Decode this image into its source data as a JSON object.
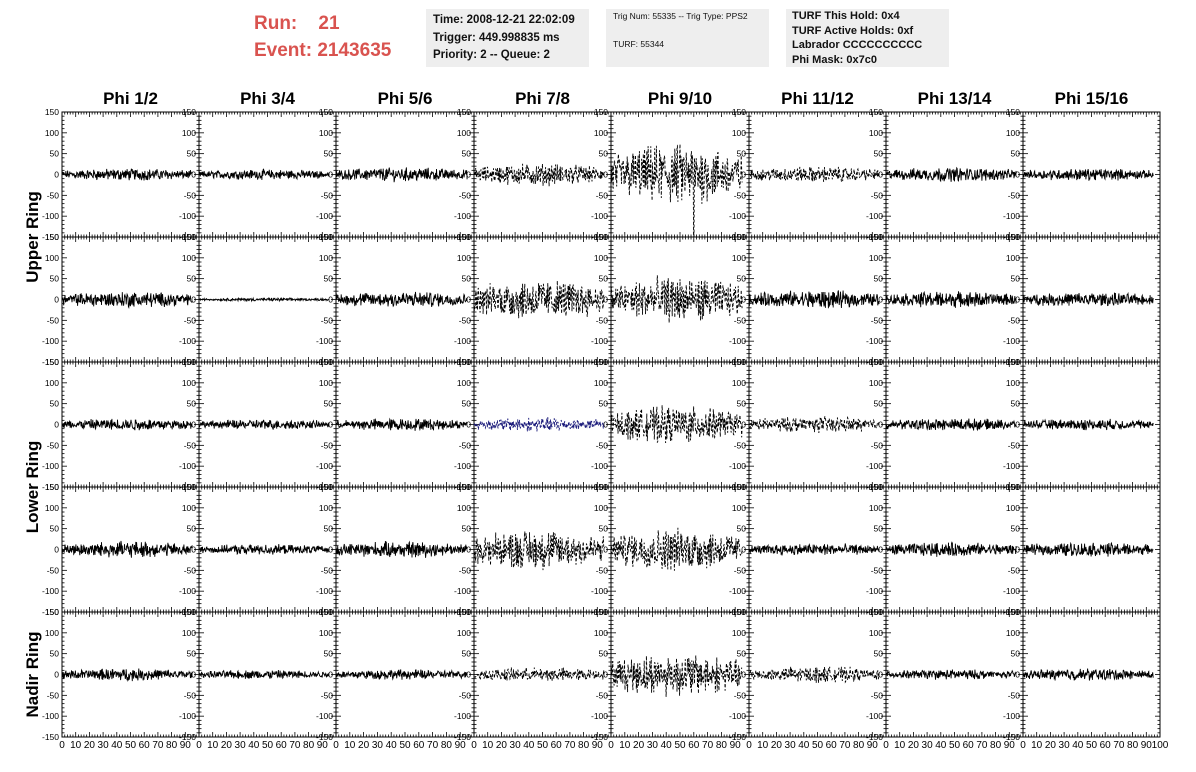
{
  "header": {
    "run_label": "Run:",
    "run_value": "21",
    "event_label": "Event:",
    "event_value": "2143635",
    "accent_color": "#d9534f"
  },
  "time_box": {
    "time": "Time: 2008-12-21 22:02:09",
    "trigger": "Trigger: 449.998835 ms",
    "priority": "Priority: 2 -- Queue: 2"
  },
  "trig_box": {
    "trig": "Trig Num: 55335 -- Trig Type: PPS2",
    "turf": "TURF: 55344"
  },
  "turf_box": {
    "hold": "TURF This Hold: 0x4",
    "active_holds": "TURF Active Holds: 0xf",
    "labrador": "Labrador CCCCCCCCCC",
    "phi_mask": "Phi Mask: 0x7c0"
  },
  "chart_data": {
    "type": "line",
    "columns": [
      "Phi 1/2",
      "Phi 3/4",
      "Phi 5/6",
      "Phi 7/8",
      "Phi 9/10",
      "Phi 11/12",
      "Phi 13/14",
      "Phi 15/16"
    ],
    "ring_labels": [
      {
        "label": "Upper Ring",
        "rows": [
          0,
          1
        ]
      },
      {
        "label": "Lower Ring",
        "rows": [
          2,
          3
        ]
      },
      {
        "label": "Nadir Ring",
        "rows": [
          4
        ]
      }
    ],
    "xlim": [
      0,
      100
    ],
    "ylim": [
      -150,
      150
    ],
    "y_ticks": [
      -150,
      -100,
      -50,
      0,
      50,
      100,
      150
    ],
    "y_tick_labels": [
      "-150",
      "-100",
      "-50",
      "0",
      "50",
      "100",
      "150"
    ],
    "x_tick_labels": [
      "0",
      "10",
      "20",
      "30",
      "40",
      "50",
      "60",
      "70",
      "80",
      "90",
      "100"
    ],
    "trace_end_x": 95,
    "traces": [
      [
        {
          "amp": 12,
          "style": "solid",
          "color": "#000000"
        },
        {
          "amp": 10,
          "style": "solid",
          "color": "#000000"
        },
        {
          "amp": 14,
          "style": "solid",
          "color": "#000000"
        },
        {
          "amp": 22,
          "style": "dashed",
          "color": "#000000"
        },
        {
          "amp": 60,
          "style": "dashed",
          "color": "#000000",
          "spike_x": 60,
          "spike_y": -150
        },
        {
          "amp": 16,
          "style": "dashed",
          "color": "#000000"
        },
        {
          "amp": 14,
          "style": "solid",
          "color": "#000000"
        },
        {
          "amp": 12,
          "style": "solid",
          "color": "#000000"
        }
      ],
      [
        {
          "amp": 16,
          "style": "solid",
          "color": "#000000"
        },
        {
          "amp": 3,
          "style": "solid",
          "color": "#000000"
        },
        {
          "amp": 16,
          "style": "solid",
          "color": "#000000"
        },
        {
          "amp": 40,
          "style": "dashed",
          "color": "#000000"
        },
        {
          "amp": 45,
          "style": "dashed",
          "color": "#000000"
        },
        {
          "amp": 18,
          "style": "solid",
          "color": "#000000"
        },
        {
          "amp": 16,
          "style": "solid",
          "color": "#000000"
        },
        {
          "amp": 14,
          "style": "solid",
          "color": "#000000"
        }
      ],
      [
        {
          "amp": 12,
          "style": "solid",
          "color": "#000000"
        },
        {
          "amp": 10,
          "style": "solid",
          "color": "#000000"
        },
        {
          "amp": 12,
          "style": "solid",
          "color": "#000000"
        },
        {
          "amp": 14,
          "style": "dashed",
          "color": "#1a1a7a"
        },
        {
          "amp": 36,
          "style": "dashed",
          "color": "#000000"
        },
        {
          "amp": 16,
          "style": "dashed",
          "color": "#000000"
        },
        {
          "amp": 12,
          "style": "solid",
          "color": "#000000"
        },
        {
          "amp": 11,
          "style": "solid",
          "color": "#000000"
        }
      ],
      [
        {
          "amp": 16,
          "style": "solid",
          "color": "#000000"
        },
        {
          "amp": 10,
          "style": "solid",
          "color": "#000000"
        },
        {
          "amp": 16,
          "style": "solid",
          "color": "#000000"
        },
        {
          "amp": 40,
          "style": "dashed",
          "color": "#000000"
        },
        {
          "amp": 42,
          "style": "dashed",
          "color": "#000000"
        },
        {
          "amp": 12,
          "style": "solid",
          "color": "#000000"
        },
        {
          "amp": 14,
          "style": "solid",
          "color": "#000000"
        },
        {
          "amp": 14,
          "style": "solid",
          "color": "#000000"
        }
      ],
      [
        {
          "amp": 12,
          "style": "solid",
          "color": "#000000"
        },
        {
          "amp": 9,
          "style": "solid",
          "color": "#000000"
        },
        {
          "amp": 10,
          "style": "solid",
          "color": "#000000"
        },
        {
          "amp": 14,
          "style": "dashed",
          "color": "#000000"
        },
        {
          "amp": 42,
          "style": "dashed",
          "color": "#000000"
        },
        {
          "amp": 16,
          "style": "dashed",
          "color": "#000000"
        },
        {
          "amp": 10,
          "style": "solid",
          "color": "#000000"
        },
        {
          "amp": 12,
          "style": "solid",
          "color": "#000000"
        }
      ]
    ]
  }
}
